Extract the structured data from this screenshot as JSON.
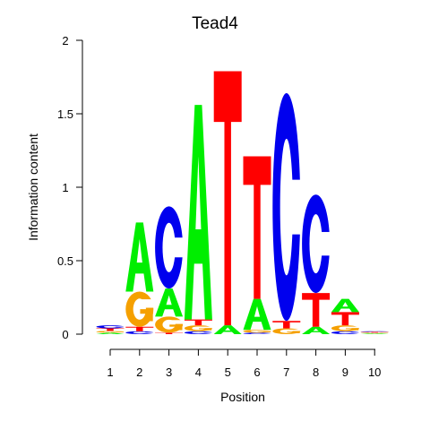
{
  "chart_data": {
    "type": "sequence-logo",
    "title": "Tead4",
    "xlabel": "Position",
    "ylabel": "Information content",
    "ylim": [
      0,
      2
    ],
    "yticks": [
      0,
      0.5,
      1,
      1.5,
      2
    ],
    "ytick_labels": [
      "0",
      "0.5",
      "1",
      "1.5",
      "2"
    ],
    "positions": [
      "1",
      "2",
      "3",
      "4",
      "5",
      "6",
      "7",
      "8",
      "9",
      "10"
    ],
    "colors": {
      "A": "#00ee00",
      "C": "#0000ee",
      "G": "#f5a000",
      "T": "#ff0000"
    },
    "columns": [
      [
        {
          "b": "A",
          "h": 0.01
        },
        {
          "b": "G",
          "h": 0.012
        },
        {
          "b": "T",
          "h": 0.018
        },
        {
          "b": "C",
          "h": 0.02
        }
      ],
      [
        {
          "b": "C",
          "h": 0.02
        },
        {
          "b": "T",
          "h": 0.03
        },
        {
          "b": "G",
          "h": 0.24
        },
        {
          "b": "A",
          "h": 0.47
        }
      ],
      [
        {
          "b": "T",
          "h": 0.01
        },
        {
          "b": "G",
          "h": 0.11
        },
        {
          "b": "A",
          "h": 0.19
        },
        {
          "b": "C",
          "h": 0.56
        }
      ],
      [
        {
          "b": "C",
          "h": 0.02
        },
        {
          "b": "G",
          "h": 0.04
        },
        {
          "b": "T",
          "h": 0.04
        },
        {
          "b": "A",
          "h": 1.46
        }
      ],
      [
        {
          "b": "A",
          "h": 0.06
        },
        {
          "b": "T",
          "h": 1.73
        }
      ],
      [
        {
          "b": "C",
          "h": 0.01
        },
        {
          "b": "G",
          "h": 0.02
        },
        {
          "b": "A",
          "h": 0.21
        },
        {
          "b": "T",
          "h": 0.97
        }
      ],
      [
        {
          "b": "G",
          "h": 0.04
        },
        {
          "b": "T",
          "h": 0.05
        },
        {
          "b": "C",
          "h": 1.55
        }
      ],
      [
        {
          "b": "A",
          "h": 0.05
        },
        {
          "b": "T",
          "h": 0.23
        },
        {
          "b": "C",
          "h": 0.67
        }
      ],
      [
        {
          "b": "C",
          "h": 0.02
        },
        {
          "b": "G",
          "h": 0.04
        },
        {
          "b": "T",
          "h": 0.09
        },
        {
          "b": "A",
          "h": 0.09
        }
      ],
      [
        {
          "b": "A",
          "h": 0.005
        },
        {
          "b": "G",
          "h": 0.005
        },
        {
          "b": "T",
          "h": 0.005
        },
        {
          "b": "C",
          "h": 0.005
        }
      ]
    ]
  }
}
